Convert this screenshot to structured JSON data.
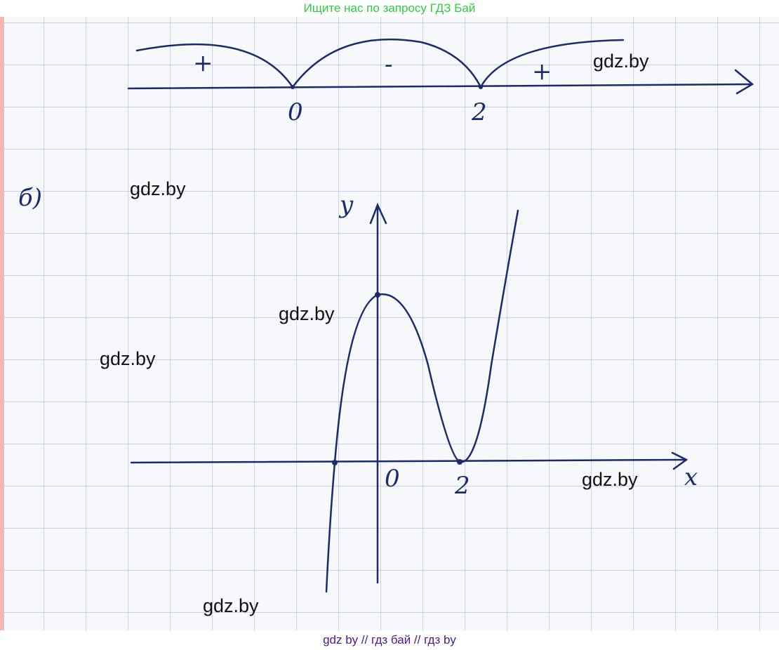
{
  "header_banner": "Ищите нас по запросу ГДЗ Бай",
  "footer_banner": "gdz by  //  гдз бай  //  гдз by",
  "watermarks": [
    "gdz.by",
    "gdz.by",
    "gdz.by",
    "gdz.by",
    "gdz.by",
    "gdz.by"
  ],
  "sign_chart": {
    "signs": [
      "+",
      "-",
      "+"
    ],
    "points": [
      "0",
      "2"
    ]
  },
  "part_label": "б)",
  "graph": {
    "y_label": "y",
    "x_label": "x",
    "origin_label": "0",
    "x_tick": "2"
  },
  "colors": {
    "ink": "#1b2a6b",
    "header": "#2ecc40",
    "footer": "#4b1a8a"
  }
}
